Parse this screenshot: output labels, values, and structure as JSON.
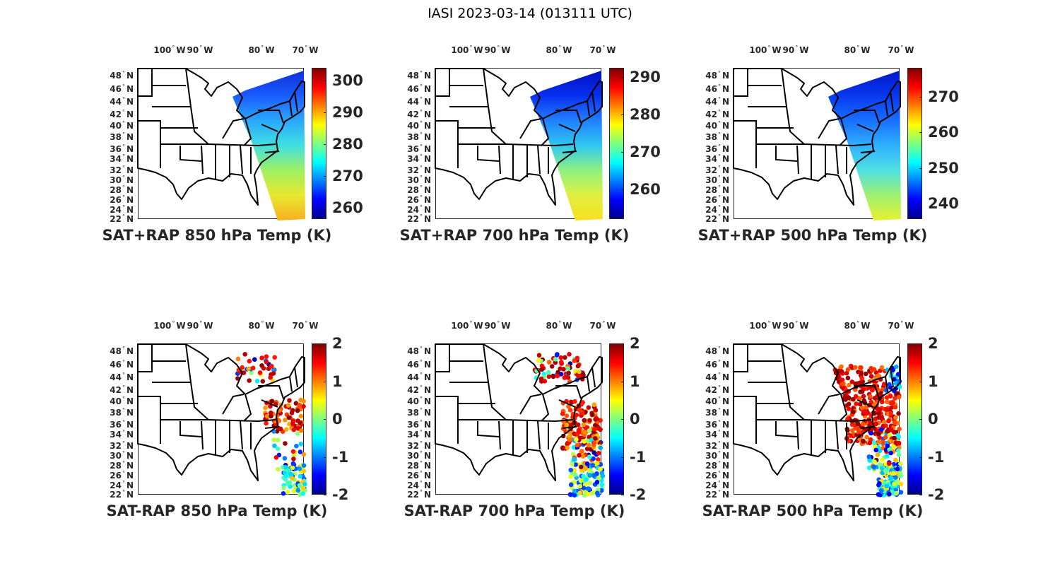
{
  "figure_title": "IASI 2023-03-14 (013111 UTC)",
  "lon_labels": [
    "100",
    "90",
    "80",
    "70"
  ],
  "lon_suffix": "W",
  "lat_labels": [
    "48",
    "46",
    "44",
    "42",
    "40",
    "38",
    "36",
    "34",
    "32",
    "30",
    "28",
    "26",
    "24",
    "22"
  ],
  "lat_suffix": "N",
  "colormap": "jet",
  "panels": [
    {
      "title": "SAT+RAP 850 hPa Temp (K)",
      "kind": "field",
      "clim": [
        256.4,
        303.9
      ],
      "ticks": [
        "260",
        "270",
        "280",
        "290",
        "300"
      ],
      "colors": [
        "#1030d8",
        "#1a5cff",
        "#2aa8ff",
        "#40e0e0",
        "#a0f060",
        "#e8e830",
        "#f8b020"
      ]
    },
    {
      "title": "SAT+RAP 700 hPa Temp (K)",
      "kind": "field",
      "clim": [
        252.1,
        292.5
      ],
      "ticks": [
        "260",
        "270",
        "280",
        "290"
      ],
      "colors": [
        "#0010c0",
        "#0830f0",
        "#2080ff",
        "#30c8f0",
        "#90f080",
        "#e0f040",
        "#f8e020"
      ]
    },
    {
      "title": "SAT+RAP 500 hPa Temp (K)",
      "kind": "field",
      "clim": [
        235.6,
        278.2
      ],
      "ticks": [
        "240",
        "250",
        "260",
        "270"
      ],
      "colors": [
        "#0018c8",
        "#0838f0",
        "#1870ff",
        "#30b0ff",
        "#50e0e0",
        "#a0f070",
        "#e8f030"
      ]
    },
    {
      "title": "SAT-RAP 850 hPa Temp (K)",
      "kind": "diff",
      "clim": [
        -2,
        2
      ],
      "ticks": [
        "-2",
        "-1",
        "0",
        "1",
        "2"
      ]
    },
    {
      "title": "SAT-RAP 700 hPa Temp (K)",
      "kind": "diff",
      "clim": [
        -2,
        2
      ],
      "ticks": [
        "-2",
        "-1",
        "0",
        "1",
        "2"
      ]
    },
    {
      "title": "SAT-RAP 500 hPa Temp (K)",
      "kind": "diff",
      "clim": [
        -2,
        2
      ],
      "ticks": [
        "-2",
        "-1",
        "0",
        "1",
        "2"
      ]
    }
  ]
}
